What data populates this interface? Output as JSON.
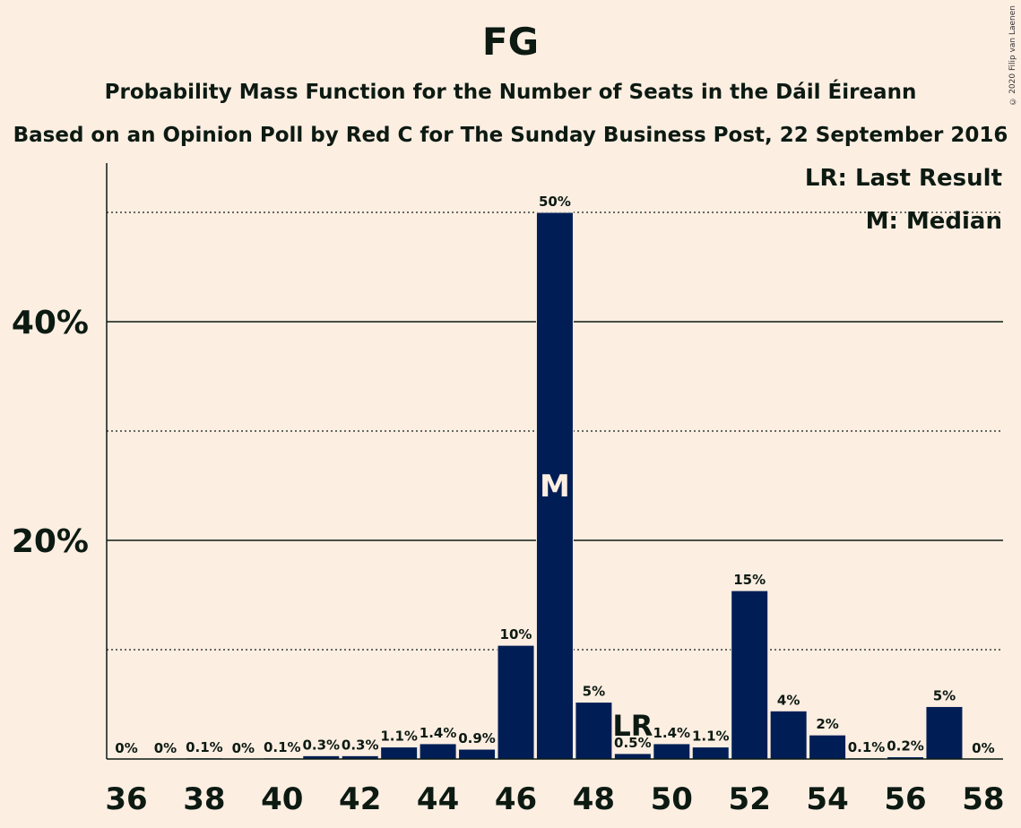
{
  "header": {
    "title": "FG",
    "subtitle": "Probability Mass Function for the Number of Seats in the Dáil Éireann",
    "subtitle2": "Based on an Opinion Poll by Red C for The Sunday Business Post, 22 September 2016",
    "copyright": "© 2020 Filip van Laenen"
  },
  "legend": {
    "last_result": "LR: Last Result",
    "median": "M: Median"
  },
  "chart_data": {
    "type": "bar",
    "x": [
      36,
      37,
      38,
      39,
      40,
      41,
      42,
      43,
      44,
      45,
      46,
      47,
      48,
      49,
      50,
      51,
      52,
      53,
      54,
      55,
      56,
      57,
      58
    ],
    "values": [
      0,
      0,
      0.1,
      0,
      0.1,
      0.3,
      0.3,
      1.1,
      1.4,
      0.9,
      10.4,
      50,
      5.2,
      0.5,
      1.4,
      1.1,
      15.4,
      4.4,
      2.2,
      0.1,
      0.2,
      4.8,
      0
    ],
    "labels": [
      "0%",
      "0%",
      "0.1%",
      "0%",
      "0.1%",
      "0.3%",
      "0.3%",
      "1.1%",
      "1.4%",
      "0.9%",
      "10%",
      "50%",
      "5%",
      "0.5%",
      "1.4%",
      "1.1%",
      "15%",
      "4%",
      "2%",
      "0.1%",
      "0.2%",
      "5%",
      "0%"
    ],
    "x_tick_labels": [
      "36",
      "38",
      "40",
      "42",
      "44",
      "46",
      "48",
      "50",
      "52",
      "54",
      "56",
      "58"
    ],
    "y_tick_labels": [
      "20%",
      "40%"
    ],
    "ylim": [
      0,
      54
    ],
    "median_seat": 47,
    "median_marker": "M",
    "last_result_seat": 49,
    "last_result_marker": "LR",
    "bar_color": "#001e55",
    "background_color": "#fdeee2"
  }
}
